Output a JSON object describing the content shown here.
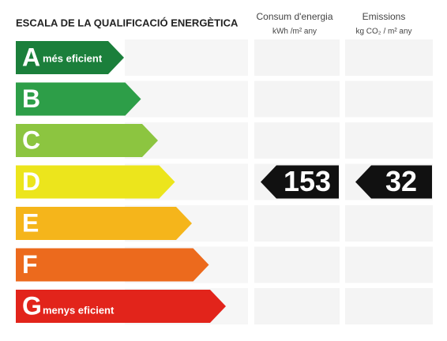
{
  "title": "ESCALA DE LA QUALIFICACIÓ ENERGÈTICA",
  "columns": [
    {
      "label": "Consum d'energia",
      "unit": "kWh /m² any",
      "value": 153,
      "class": "D"
    },
    {
      "label": "Emissions",
      "unit": "kg CO₂ / m² any",
      "value": 32,
      "class": "D"
    }
  ],
  "rows": [
    {
      "letter": "A",
      "note": "més eficient",
      "color": "#1b7f3b"
    },
    {
      "letter": "B",
      "color": "#2d9e48"
    },
    {
      "letter": "C",
      "color": "#8cc540"
    },
    {
      "letter": "D",
      "color": "#ece51c"
    },
    {
      "letter": "E",
      "color": "#f5b51b"
    },
    {
      "letter": "F",
      "color": "#ec6a1d"
    },
    {
      "letter": "G",
      "note": "menys eficient",
      "color": "#e2241b"
    }
  ]
}
